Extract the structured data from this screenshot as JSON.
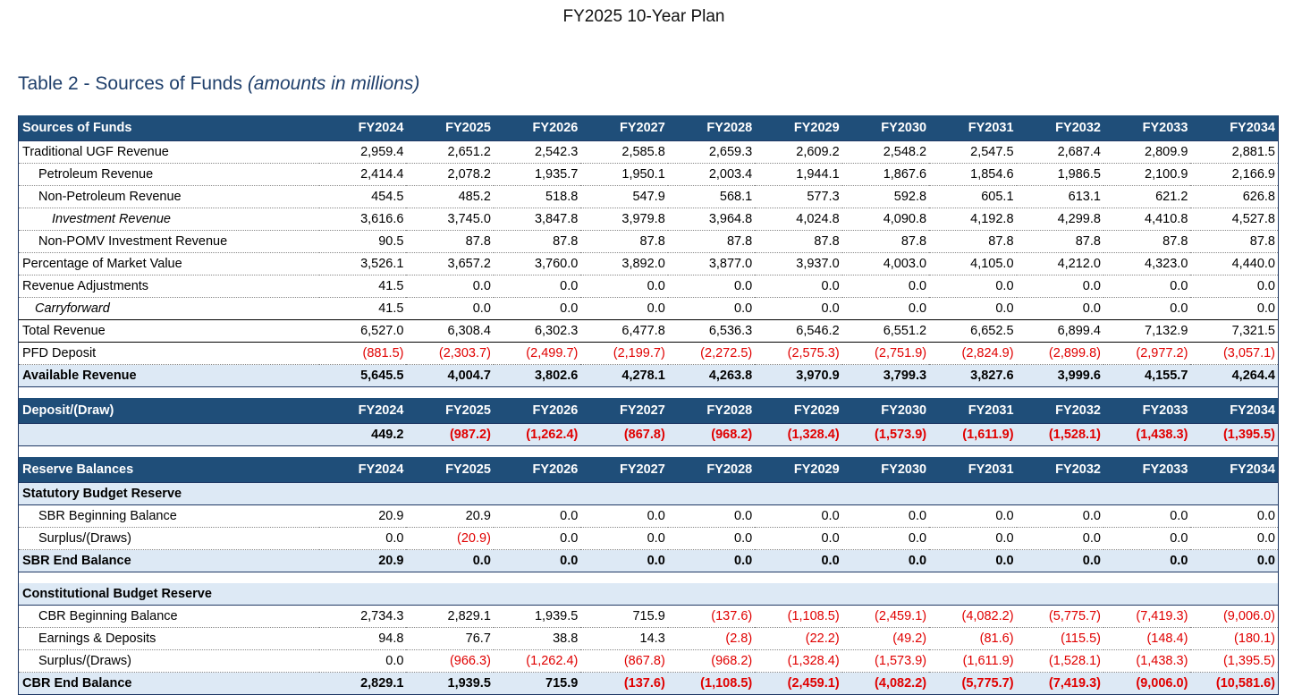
{
  "document": {
    "plan_title": "FY2025 10-Year Plan",
    "table_title": "Table 2 - Sources of Funds",
    "table_subtitle": "(amounts in millions)"
  },
  "years": [
    "FY2024",
    "FY2025",
    "FY2026",
    "FY2027",
    "FY2028",
    "FY2029",
    "FY2030",
    "FY2031",
    "FY2032",
    "FY2033",
    "FY2034"
  ],
  "sources": {
    "header": "Sources of Funds",
    "rows": [
      {
        "label": "Traditional UGF Revenue",
        "style": "",
        "values": [
          "2,959.4",
          "2,651.2",
          "2,542.3",
          "2,585.8",
          "2,659.3",
          "2,609.2",
          "2,548.2",
          "2,547.5",
          "2,687.4",
          "2,809.9",
          "2,881.5"
        ]
      },
      {
        "label": "Petroleum Revenue",
        "style": "i1",
        "values": [
          "2,414.4",
          "2,078.2",
          "1,935.7",
          "1,950.1",
          "2,003.4",
          "1,944.1",
          "1,867.6",
          "1,854.6",
          "1,986.5",
          "2,100.9",
          "2,166.9"
        ]
      },
      {
        "label": "Non-Petroleum Revenue",
        "style": "i1",
        "values": [
          "454.5",
          "485.2",
          "518.8",
          "547.9",
          "568.1",
          "577.3",
          "592.8",
          "605.1",
          "613.1",
          "621.2",
          "626.8"
        ]
      },
      {
        "label": "Investment Revenue",
        "style": "i2",
        "values": [
          "3,616.6",
          "3,745.0",
          "3,847.8",
          "3,979.8",
          "3,964.8",
          "4,024.8",
          "4,090.8",
          "4,192.8",
          "4,299.8",
          "4,410.8",
          "4,527.8"
        ]
      },
      {
        "label": "Non-POMV Investment Revenue",
        "style": "i1",
        "values": [
          "90.5",
          "87.8",
          "87.8",
          "87.8",
          "87.8",
          "87.8",
          "87.8",
          "87.8",
          "87.8",
          "87.8",
          "87.8"
        ]
      },
      {
        "label": "Percentage of Market Value",
        "style": "",
        "values": [
          "3,526.1",
          "3,657.2",
          "3,760.0",
          "3,892.0",
          "3,877.0",
          "3,937.0",
          "4,003.0",
          "4,105.0",
          "4,212.0",
          "4,323.0",
          "4,440.0"
        ]
      },
      {
        "label": "Revenue Adjustments",
        "style": "",
        "values": [
          "41.5",
          "0.0",
          "0.0",
          "0.0",
          "0.0",
          "0.0",
          "0.0",
          "0.0",
          "0.0",
          "0.0",
          "0.0"
        ]
      },
      {
        "label": "Carryforward",
        "style": "i3",
        "values": [
          "41.5",
          "0.0",
          "0.0",
          "0.0",
          "0.0",
          "0.0",
          "0.0",
          "0.0",
          "0.0",
          "0.0",
          "0.0"
        ]
      },
      {
        "label": "Total Revenue",
        "style": "total",
        "values": [
          "6,527.0",
          "6,308.4",
          "6,302.3",
          "6,477.8",
          "6,536.3",
          "6,546.2",
          "6,551.2",
          "6,652.5",
          "6,899.4",
          "7,132.9",
          "7,321.5"
        ]
      },
      {
        "label": "PFD Deposit",
        "style": "",
        "values": [
          "(881.5)",
          "(2,303.7)",
          "(2,499.7)",
          "(2,199.7)",
          "(2,272.5)",
          "(2,575.3)",
          "(2,751.9)",
          "(2,824.9)",
          "(2,899.8)",
          "(2,977.2)",
          "(3,057.1)"
        ]
      },
      {
        "label": "Available Revenue",
        "style": "band",
        "values": [
          "5,645.5",
          "4,004.7",
          "3,802.6",
          "4,278.1",
          "4,263.8",
          "3,970.9",
          "3,799.3",
          "3,827.6",
          "3,999.6",
          "4,155.7",
          "4,264.4"
        ]
      }
    ]
  },
  "deposit": {
    "header": "Deposit/(Draw)",
    "values": [
      "449.2",
      "(987.2)",
      "(1,262.4)",
      "(867.8)",
      "(968.2)",
      "(1,328.4)",
      "(1,573.9)",
      "(1,611.9)",
      "(1,528.1)",
      "(1,438.3)",
      "(1,395.5)"
    ]
  },
  "reserves": {
    "header": "Reserve Balances",
    "sbr": {
      "title": "Statutory Budget Reserve",
      "rows": [
        {
          "label": "SBR Beginning Balance",
          "style": "i1s",
          "values": [
            "20.9",
            "20.9",
            "0.0",
            "0.0",
            "0.0",
            "0.0",
            "0.0",
            "0.0",
            "0.0",
            "0.0",
            "0.0"
          ]
        },
        {
          "label": "Surplus/(Draws)",
          "style": "i1s",
          "values": [
            "0.0",
            "(20.9)",
            "0.0",
            "0.0",
            "0.0",
            "0.0",
            "0.0",
            "0.0",
            "0.0",
            "0.0",
            "0.0"
          ]
        },
        {
          "label": "SBR End Balance",
          "style": "band",
          "values": [
            "20.9",
            "0.0",
            "0.0",
            "0.0",
            "0.0",
            "0.0",
            "0.0",
            "0.0",
            "0.0",
            "0.0",
            "0.0"
          ]
        }
      ]
    },
    "cbr": {
      "title": "Constitutional Budget Reserve",
      "rows": [
        {
          "label": "CBR Beginning Balance",
          "style": "i1s",
          "values": [
            "2,734.3",
            "2,829.1",
            "1,939.5",
            "715.9",
            "(137.6)",
            "(1,108.5)",
            "(2,459.1)",
            "(4,082.2)",
            "(5,775.7)",
            "(7,419.3)",
            "(9,006.0)"
          ]
        },
        {
          "label": "Earnings & Deposits",
          "style": "i1s",
          "values": [
            "94.8",
            "76.7",
            "38.8",
            "14.3",
            "(2.8)",
            "(22.2)",
            "(49.2)",
            "(81.6)",
            "(115.5)",
            "(148.4)",
            "(180.1)"
          ]
        },
        {
          "label": "Surplus/(Draws)",
          "style": "i1s",
          "values": [
            "0.0",
            "(966.3)",
            "(1,262.4)",
            "(867.8)",
            "(968.2)",
            "(1,328.4)",
            "(1,573.9)",
            "(1,611.9)",
            "(1,528.1)",
            "(1,438.3)",
            "(1,395.5)"
          ]
        },
        {
          "label": "CBR End Balance",
          "style": "band",
          "values": [
            "2,829.1",
            "1,939.5",
            "715.9",
            "(137.6)",
            "(1,108.5)",
            "(2,459.1)",
            "(4,082.2)",
            "(5,775.7)",
            "(7,419.3)",
            "(9,006.0)",
            "(10,581.6)"
          ]
        }
      ]
    }
  },
  "colors": {
    "header_bg": "#1f4e79",
    "band_bg": "#dde9f5",
    "negative": "#e00000",
    "title": "#1f3f6b"
  }
}
